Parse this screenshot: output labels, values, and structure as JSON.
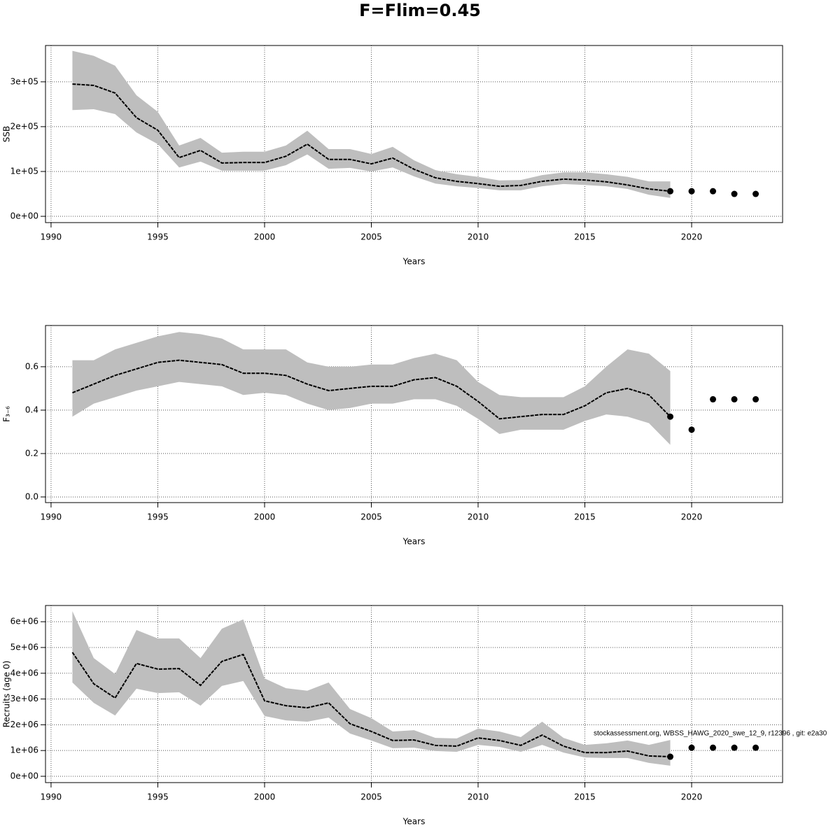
{
  "title": "F=Flim=0.45",
  "footnote": "stockassessment.org, WBSS_HAWG_2020_swe_12_9, r12396 , git: e2a30",
  "chart_data": [
    {
      "type": "line",
      "ylabel": "SSB",
      "xlabel": "Years",
      "xlim": [
        1989.74,
        2024.26
      ],
      "xticks": [
        1990,
        1995,
        2000,
        2005,
        2010,
        2015,
        2020
      ],
      "ylim": [
        -14000,
        381000
      ],
      "yticks": [
        {
          "value": 0,
          "label": "0e+00"
        },
        {
          "value": 100000,
          "label": "1e+05"
        },
        {
          "value": 200000,
          "label": "2e+05"
        },
        {
          "value": 300000,
          "label": "3e+05"
        }
      ],
      "grid": true,
      "line_color": "#000000",
      "band_color": "#bebebe",
      "x": [
        1991,
        1992,
        1993,
        1994,
        1995,
        1996,
        1997,
        1998,
        1999,
        2000,
        2001,
        2002,
        2003,
        2004,
        2005,
        2006,
        2007,
        2008,
        2009,
        2010,
        2011,
        2012,
        2013,
        2014,
        2015,
        2016,
        2017,
        2018,
        2019
      ],
      "values": [
        295000,
        292000,
        275000,
        220000,
        192000,
        131000,
        147000,
        119000,
        120000,
        120000,
        134000,
        161000,
        127000,
        127000,
        117000,
        130000,
        105000,
        86000,
        78000,
        73000,
        67000,
        69000,
        78000,
        83000,
        81000,
        77000,
        70000,
        61000,
        56000
      ],
      "upper": [
        369000,
        358000,
        336000,
        270000,
        233000,
        158000,
        175000,
        142000,
        144000,
        144000,
        158000,
        191000,
        150000,
        150000,
        139000,
        155000,
        125000,
        103000,
        94000,
        88000,
        80000,
        81000,
        92000,
        98000,
        98000,
        94000,
        88000,
        78000,
        78000
      ],
      "lower": [
        237000,
        239000,
        228000,
        187000,
        161000,
        109000,
        122000,
        102000,
        102000,
        102000,
        114000,
        138000,
        106000,
        108000,
        100000,
        109000,
        89000,
        73000,
        67000,
        63000,
        58000,
        58000,
        67000,
        72000,
        70000,
        67000,
        61000,
        48000,
        41000
      ],
      "forecast": {
        "x": [
          2019,
          2020,
          2021,
          2022,
          2023
        ],
        "values": [
          56000,
          56000,
          56000,
          50000,
          50000
        ]
      }
    },
    {
      "type": "line",
      "ylabel": "F₃₋₆",
      "xlabel": "Years",
      "xlim": [
        1989.74,
        2024.26
      ],
      "xticks": [
        1990,
        1995,
        2000,
        2005,
        2010,
        2015,
        2020
      ],
      "ylim": [
        -0.026,
        0.79
      ],
      "yticks": [
        {
          "value": 0,
          "label": "0.0"
        },
        0.2,
        0.4,
        0.6
      ],
      "grid": true,
      "line_color": "#000000",
      "band_color": "#bebebe",
      "x": [
        1991,
        1992,
        1993,
        1994,
        1995,
        1996,
        1997,
        1998,
        1999,
        2000,
        2001,
        2002,
        2003,
        2004,
        2005,
        2006,
        2007,
        2008,
        2009,
        2010,
        2011,
        2012,
        2013,
        2014,
        2015,
        2016,
        2017,
        2018,
        2019
      ],
      "values": [
        0.48,
        0.52,
        0.56,
        0.59,
        0.62,
        0.63,
        0.62,
        0.61,
        0.57,
        0.57,
        0.56,
        0.52,
        0.49,
        0.5,
        0.51,
        0.51,
        0.54,
        0.55,
        0.51,
        0.44,
        0.36,
        0.37,
        0.38,
        0.38,
        0.42,
        0.48,
        0.5,
        0.47,
        0.37
      ],
      "upper": [
        0.63,
        0.63,
        0.68,
        0.71,
        0.74,
        0.76,
        0.75,
        0.73,
        0.68,
        0.68,
        0.68,
        0.62,
        0.6,
        0.6,
        0.61,
        0.61,
        0.64,
        0.66,
        0.63,
        0.53,
        0.47,
        0.46,
        0.46,
        0.46,
        0.51,
        0.6,
        0.68,
        0.66,
        0.58
      ],
      "lower": [
        0.37,
        0.43,
        0.46,
        0.49,
        0.51,
        0.53,
        0.52,
        0.51,
        0.47,
        0.48,
        0.47,
        0.43,
        0.4,
        0.41,
        0.43,
        0.43,
        0.45,
        0.45,
        0.42,
        0.36,
        0.29,
        0.31,
        0.31,
        0.31,
        0.35,
        0.38,
        0.37,
        0.34,
        0.24
      ],
      "forecast": {
        "x": [
          2019,
          2020,
          2021,
          2022,
          2023
        ],
        "values": [
          0.37,
          0.31,
          0.45,
          0.45,
          0.45
        ]
      }
    },
    {
      "type": "line",
      "ylabel": "Recruits (age 0)",
      "xlabel": "Years",
      "xlim": [
        1989.74,
        2024.26
      ],
      "xticks": [
        1990,
        1995,
        2000,
        2005,
        2010,
        2015,
        2020
      ],
      "ylim": [
        -245000,
        6630000
      ],
      "yticks": [
        {
          "value": 0,
          "label": "0e+00"
        },
        {
          "value": 1000000,
          "label": "1e+06"
        },
        {
          "value": 2000000,
          "label": "2e+06"
        },
        {
          "value": 3000000,
          "label": "3e+06"
        },
        {
          "value": 4000000,
          "label": "4e+06"
        },
        {
          "value": 5000000,
          "label": "5e+06"
        },
        {
          "value": 6000000,
          "label": "6e+06"
        }
      ],
      "grid": true,
      "line_color": "#000000",
      "band_color": "#bebebe",
      "x": [
        1991,
        1992,
        1993,
        1994,
        1995,
        1996,
        1997,
        1998,
        1999,
        2000,
        2001,
        2002,
        2003,
        2004,
        2005,
        2006,
        2007,
        2008,
        2009,
        2010,
        2011,
        2012,
        2013,
        2014,
        2015,
        2016,
        2017,
        2018,
        2019
      ],
      "values": [
        4810000,
        3590000,
        3040000,
        4380000,
        4160000,
        4180000,
        3530000,
        4460000,
        4730000,
        2930000,
        2740000,
        2660000,
        2850000,
        2040000,
        1740000,
        1390000,
        1410000,
        1200000,
        1170000,
        1490000,
        1390000,
        1200000,
        1600000,
        1170000,
        920000,
        920000,
        980000,
        790000,
        760000
      ],
      "upper": [
        6410000,
        4590000,
        3970000,
        5680000,
        5350000,
        5350000,
        4590000,
        5730000,
        6090000,
        3800000,
        3420000,
        3320000,
        3640000,
        2610000,
        2260000,
        1740000,
        1790000,
        1490000,
        1470000,
        1850000,
        1740000,
        1520000,
        2120000,
        1490000,
        1220000,
        1280000,
        1390000,
        1220000,
        1410000
      ],
      "lower": [
        3640000,
        2850000,
        2360000,
        3400000,
        3230000,
        3260000,
        2740000,
        3510000,
        3700000,
        2340000,
        2170000,
        2120000,
        2280000,
        1660000,
        1390000,
        1090000,
        1110000,
        980000,
        950000,
        1220000,
        1140000,
        950000,
        1220000,
        920000,
        730000,
        710000,
        710000,
        520000,
        410000
      ],
      "forecast": {
        "x": [
          2019,
          2020,
          2021,
          2022,
          2023
        ],
        "values": [
          760000,
          1110000,
          1110000,
          1110000,
          1110000
        ]
      }
    }
  ]
}
